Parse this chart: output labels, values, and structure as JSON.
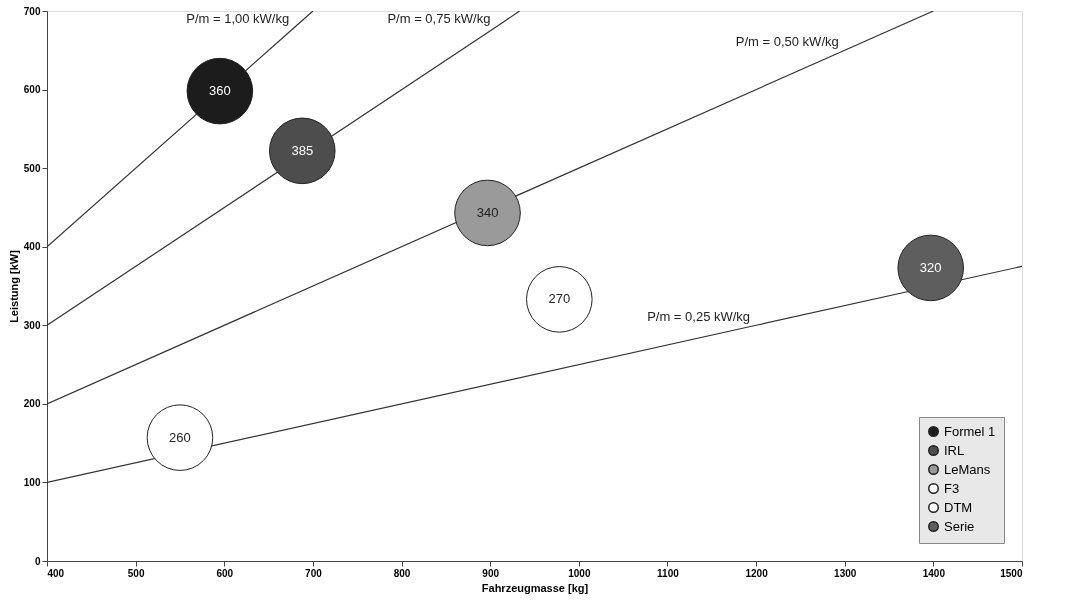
{
  "chart_data": {
    "type": "bubble",
    "xlabel": "Fahrzeugmasse [kg]",
    "ylabel": "Leistung [kW]",
    "xlim": [
      400,
      1500
    ],
    "xticks": [
      400,
      500,
      600,
      700,
      800,
      900,
      1000,
      1100,
      1200,
      1300,
      1400,
      1500
    ],
    "ylim": [
      0,
      700
    ],
    "yticks": [
      0,
      100,
      200,
      300,
      400,
      500,
      600,
      700
    ],
    "grid": false,
    "legend": "bottom right",
    "series": [
      {
        "name": "Formel 1",
        "color": "#1c1c1c",
        "x": [
          595
        ],
        "values": [
          598
        ],
        "sizes": [
          1
        ]
      },
      {
        "name": "IRL",
        "color": "#4d4d4d",
        "x": [
          688
        ],
        "values": [
          522
        ],
        "sizes": [
          1
        ]
      },
      {
        "name": "LeMans",
        "color": "#9a9a9a",
        "x": [
          897
        ],
        "values": [
          443
        ],
        "sizes": [
          1
        ]
      },
      {
        "name": "F3",
        "color": "#ffffff",
        "x": [
          978
        ],
        "values": [
          333
        ],
        "sizes": [
          1
        ]
      },
      {
        "name": "DTM",
        "color": "#ffffff",
        "x": [
          550
        ],
        "values": [
          157
        ],
        "sizes": [
          1
        ]
      },
      {
        "name": "Serie",
        "color": "#5e5e5e",
        "x": [
          1397
        ],
        "values": [
          373
        ],
        "sizes": [
          1
        ]
      },
      {
        "name": "P/m = 1,00 kW/kg",
        "type": "line",
        "color": "#333333",
        "x": [
          400,
          680,
          700
        ],
        "values": [
          400,
          680,
          700
        ]
      },
      {
        "name": "P/m = 0,75 kW/kg",
        "type": "line",
        "color": "#333333",
        "x": [
          400,
          907,
          933.3
        ],
        "values": [
          300,
          680,
          700
        ]
      },
      {
        "name": "P/m = 0,50 kW/kg",
        "type": "line",
        "color": "#333333",
        "x": [
          400,
          1300,
          1400
        ],
        "values": [
          200,
          650,
          700
        ]
      },
      {
        "name": "P/m = 0,25 kW/kg",
        "type": "line",
        "color": "#333333",
        "x": [
          400,
          1200,
          1500
        ],
        "values": [
          100,
          300,
          375
        ]
      }
    ],
    "annotations": [
      {
        "text": "360",
        "x": 595,
        "y": 598
      },
      {
        "text": "385",
        "x": 688,
        "y": 522
      },
      {
        "text": "340",
        "x": 897,
        "y": 443
      },
      {
        "text": "270",
        "x": 978,
        "y": 333
      },
      {
        "text": "260",
        "x": 550,
        "y": 157
      },
      {
        "text": "320",
        "x": 1397,
        "y": 373
      }
    ]
  }
}
